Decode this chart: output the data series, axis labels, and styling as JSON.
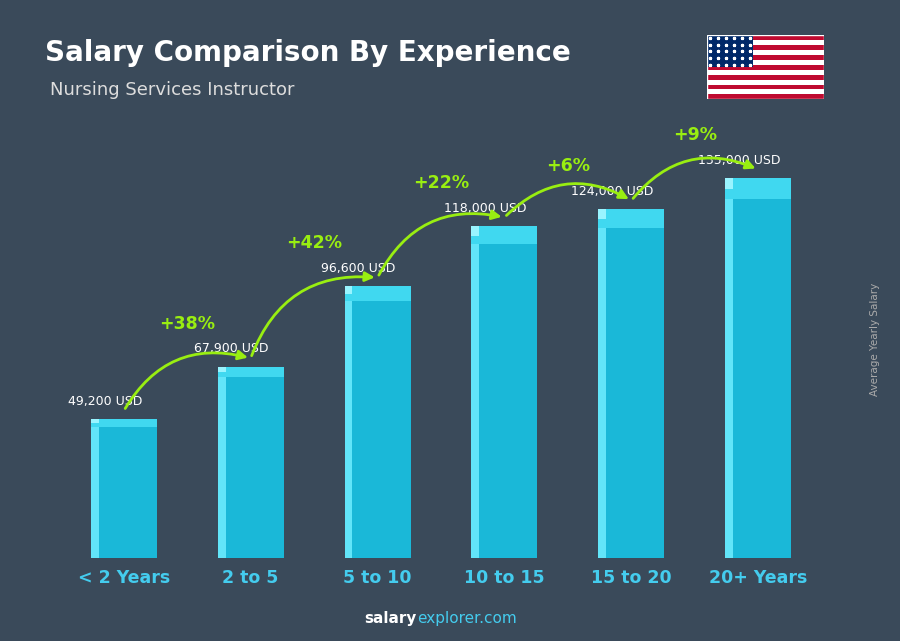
{
  "title": "Salary Comparison By Experience",
  "subtitle": "Nursing Services Instructor",
  "categories": [
    "< 2 Years",
    "2 to 5",
    "5 to 10",
    "10 to 15",
    "15 to 20",
    "20+ Years"
  ],
  "values": [
    49200,
    67900,
    96600,
    118000,
    124000,
    135000
  ],
  "value_labels": [
    "49,200 USD",
    "67,900 USD",
    "96,600 USD",
    "118,000 USD",
    "124,000 USD",
    "135,000 USD"
  ],
  "pct_changes": [
    "+38%",
    "+42%",
    "+22%",
    "+6%",
    "+9%"
  ],
  "bar_color_main": "#1ab8d8",
  "bar_color_light": "#40d8f0",
  "bar_color_highlight": "#70eeff",
  "bg_color": "#3a4a5a",
  "title_color": "#ffffff",
  "subtitle_color": "#dddddd",
  "value_label_color": "#ffffff",
  "pct_color": "#99ee11",
  "xlabel_color": "#44ccee",
  "ylabel_text": "Average Yearly Salary",
  "footer_bold": "salary",
  "footer_rest": "explorer.com",
  "ylim_max": 155000,
  "bar_width": 0.52
}
